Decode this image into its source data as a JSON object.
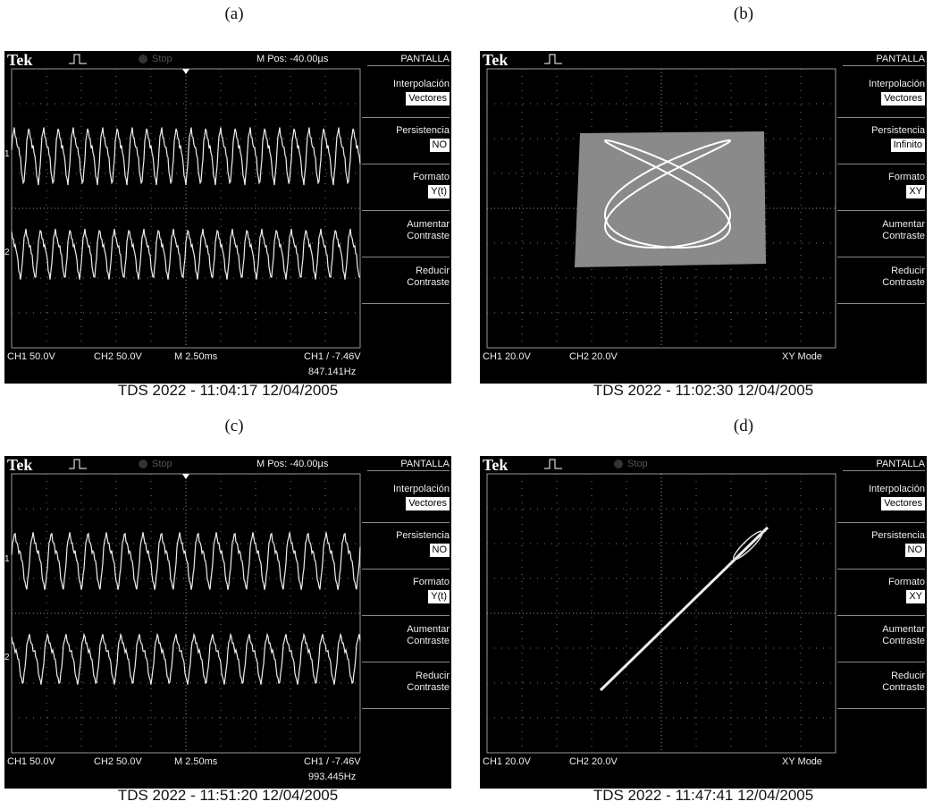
{
  "panels": [
    {
      "label": "(a)",
      "header": {
        "brand": "Tek",
        "status": "Stop",
        "position": "M Pos: -40.00µs",
        "menu_title": "PANTALLA"
      },
      "menu": [
        {
          "title": "Interpolación",
          "selected": "Vectores"
        },
        {
          "title": "Persistencia",
          "selected": "NO"
        },
        {
          "title": "Formato",
          "selected": "Y(t)"
        },
        {
          "title": "Aumentar Contraste"
        },
        {
          "title": "Reducir Contraste"
        }
      ],
      "channel_markers": [
        "1",
        "2"
      ],
      "readout": {
        "ch1": "CH1 50.0V",
        "ch2": "CH2 50.0V",
        "timebase": "M 2.50ms",
        "trigger": "CH1 / -7.46V",
        "frequency": "847.141Hz"
      },
      "caption": "TDS 2022 - 11:04:17   12/04/2005"
    },
    {
      "label": "(b)",
      "header": {
        "brand": "Tek",
        "menu_title": "PANTALLA"
      },
      "menu": [
        {
          "title": "Interpolación",
          "selected": "Vectores"
        },
        {
          "title": "Persistencia",
          "selected": "Infinito"
        },
        {
          "title": "Formato",
          "selected": "XY"
        },
        {
          "title": "Aumentar Contraste"
        },
        {
          "title": "Reducir Contraste"
        }
      ],
      "readout": {
        "ch1": "CH1 20.0V",
        "ch2": "CH2 20.0V",
        "mode": "XY Mode"
      },
      "caption": "TDS 2022 - 11:02:30   12/04/2005"
    },
    {
      "label": "(c)",
      "header": {
        "brand": "Tek",
        "status": "Stop",
        "position": "M Pos: -40.00µs",
        "menu_title": "PANTALLA"
      },
      "menu": [
        {
          "title": "Interpolación",
          "selected": "Vectores"
        },
        {
          "title": "Persistencia",
          "selected": "NO"
        },
        {
          "title": "Formato",
          "selected": "Y(t)"
        },
        {
          "title": "Aumentar Contraste"
        },
        {
          "title": "Reducir Contraste"
        }
      ],
      "channel_markers": [
        "1",
        "2"
      ],
      "readout": {
        "ch1": "CH1 50.0V",
        "ch2": "CH2 50.0V",
        "timebase": "M 2.50ms",
        "trigger": "CH1 / -7.46V",
        "frequency": "993.445Hz"
      },
      "caption": "TDS 2022 - 11:51:20   12/04/2005"
    },
    {
      "label": "(d)",
      "header": {
        "brand": "Tek",
        "status": "Stop",
        "menu_title": "PANTALLA"
      },
      "menu": [
        {
          "title": "Interpolación",
          "selected": "Vectores"
        },
        {
          "title": "Persistencia",
          "selected": "NO"
        },
        {
          "title": "Formato",
          "selected": "XY"
        },
        {
          "title": "Aumentar Contraste"
        },
        {
          "title": "Reducir Contraste"
        }
      ],
      "readout": {
        "ch1": "CH1 20.0V",
        "ch2": "CH2 20.0V",
        "mode": "XY Mode"
      },
      "caption": "TDS 2022 - 11:47:41   12/04/2005"
    }
  ]
}
